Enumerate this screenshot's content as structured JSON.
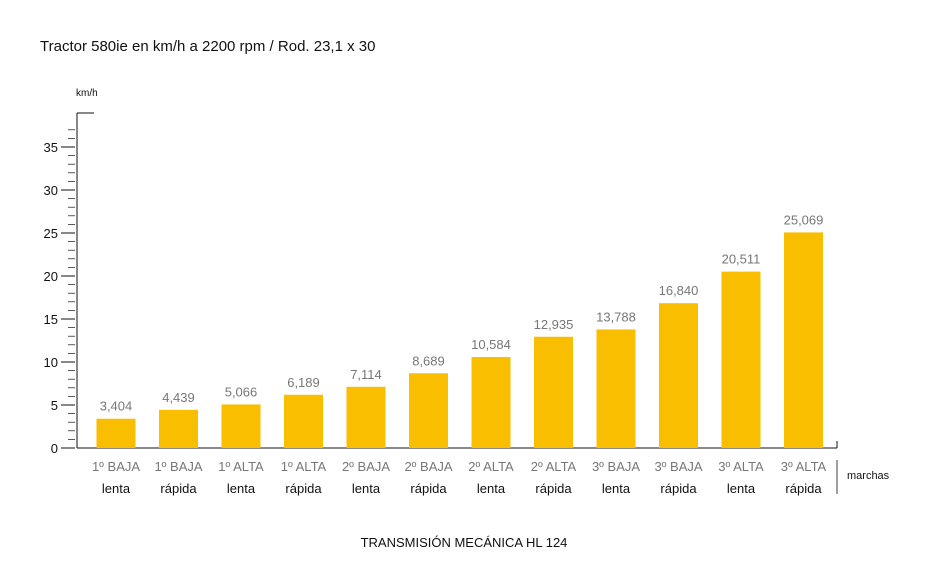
{
  "title": "Tractor 580ie en km/h a 2200 rpm / Rod. 23,1 x 30",
  "footer": "TRANSMISIÓN MECÁNICA HL 124",
  "chart_data": {
    "type": "bar",
    "title": "Tractor 580ie en km/h a 2200 rpm / Rod. 23,1 x 30",
    "ylabel": "km/h",
    "xlabel": "marchas",
    "ylim": [
      0,
      38
    ],
    "yticks": [
      0,
      5,
      10,
      15,
      20,
      25,
      30,
      35
    ],
    "categories": [
      {
        "gear": "1º BAJA",
        "speed": "lenta"
      },
      {
        "gear": "1º BAJA",
        "speed": "rápida"
      },
      {
        "gear": "1º ALTA",
        "speed": "lenta"
      },
      {
        "gear": "1º ALTA",
        "speed": "rápida"
      },
      {
        "gear": "2º BAJA",
        "speed": "lenta"
      },
      {
        "gear": "2º BAJA",
        "speed": "rápida"
      },
      {
        "gear": "2º ALTA",
        "speed": "lenta"
      },
      {
        "gear": "2º ALTA",
        "speed": "rápida"
      },
      {
        "gear": "3º BAJA",
        "speed": "lenta"
      },
      {
        "gear": "3º BAJA",
        "speed": "rápida"
      },
      {
        "gear": "3º ALTA",
        "speed": "lenta"
      },
      {
        "gear": "3º ALTA",
        "speed": "rápida"
      }
    ],
    "values": [
      3.404,
      4.439,
      5.066,
      6.189,
      7.114,
      8.689,
      10.584,
      12.935,
      13.788,
      16.84,
      20.511,
      25.069
    ],
    "value_labels": [
      "3,404",
      "4,439",
      "5,066",
      "6,189",
      "7,114",
      "8,689",
      "10,584",
      "12,935",
      "13,788",
      "16,840",
      "20,511",
      "25,069"
    ],
    "bar_color": "#F9BE00",
    "grid": false,
    "legend": "none"
  }
}
